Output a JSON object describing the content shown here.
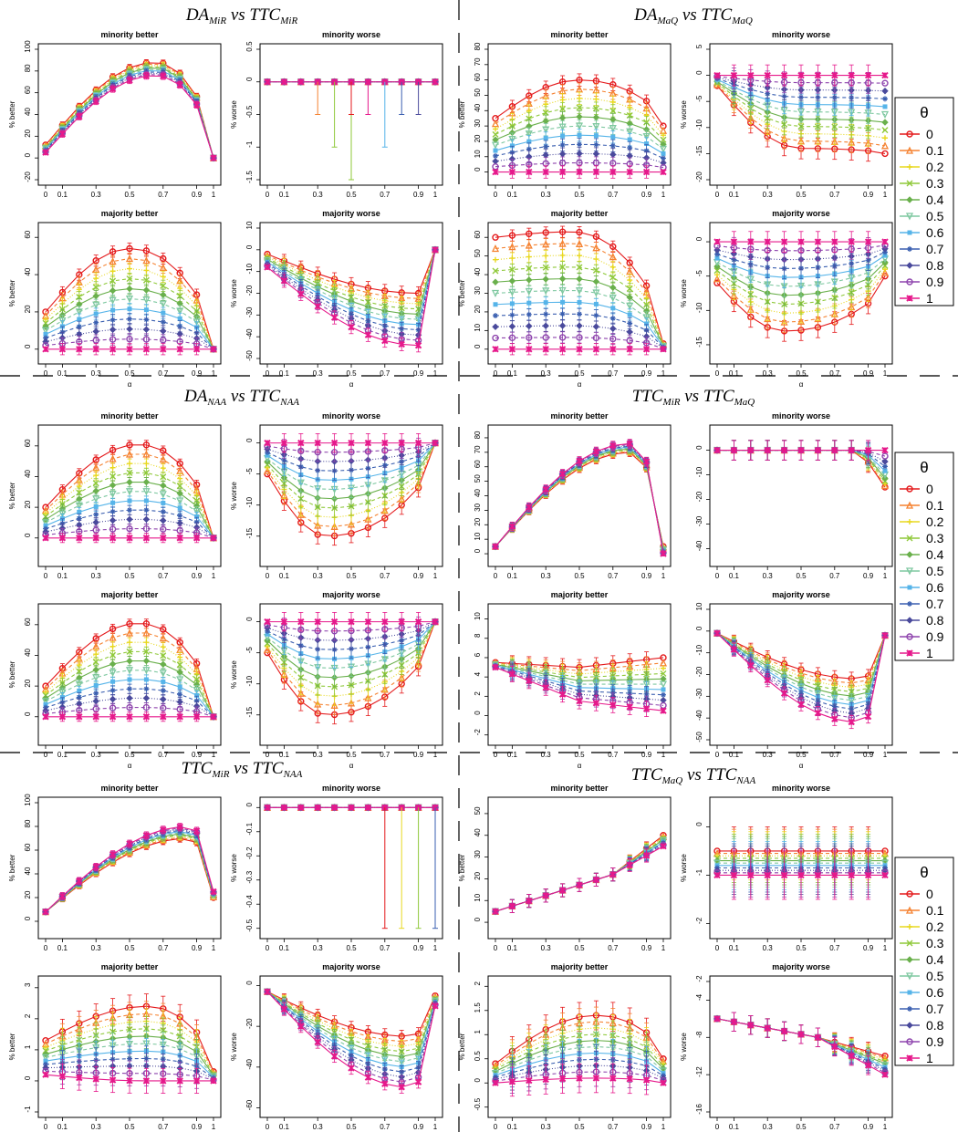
{
  "figure": {
    "alpha": [
      0,
      0.1,
      0.2,
      0.3,
      0.4,
      0.5,
      0.6,
      0.7,
      0.8,
      0.9,
      1
    ],
    "alpha_tick_labels": [
      "0",
      "0.1",
      "0.3",
      "0.5",
      "0.7",
      "0.9",
      "1"
    ],
    "alpha_tick_values": [
      0,
      0.1,
      0.3,
      0.5,
      0.7,
      0.9,
      1
    ],
    "legend": {
      "title": "θ",
      "entries": [
        "0",
        "0.1",
        "0.2",
        "0.3",
        "0.4",
        "0.5",
        "0.6",
        "0.7",
        "0.8",
        "0.9",
        "1"
      ],
      "colors": [
        "#e41a1c",
        "#f58231",
        "#e8d81e",
        "#8fc93a",
        "#6ab04c",
        "#7ec8a0",
        "#56b4e9",
        "#3a5fb0",
        "#4a4a9c",
        "#8e44ad",
        "#e6198b"
      ],
      "markers": [
        "circle",
        "triangle",
        "plus",
        "cross",
        "diamond",
        "triangle-down",
        "square",
        "asterisk",
        "diamond",
        "circle",
        "star"
      ]
    }
  },
  "chart_data": [
    {
      "group": {
        "name": "DA",
        "sub": "MiR",
        "vs": "vs",
        "name2": "TTC",
        "sub2": "MiR"
      },
      "panels": [
        {
          "type": "line",
          "title": "minority better",
          "ylabel": "% better",
          "xlabel": "",
          "ylim": [
            -20,
            100
          ],
          "yticks": [
            -20,
            0,
            20,
            40,
            60,
            80,
            100
          ],
          "shape": "hump",
          "start": [
            12,
            5
          ],
          "peak": [
            88,
            76
          ],
          "peak_alpha": 0.65,
          "end": [
            0,
            0
          ],
          "err": 3
        },
        {
          "type": "line",
          "title": "minority worse",
          "ylabel": "% worse",
          "xlabel": "",
          "ylim": [
            -1.5,
            0.5
          ],
          "yticks": [
            -1.5,
            -1.0,
            -0.5,
            0.0,
            0.5
          ],
          "shape": "flat",
          "start": [
            0,
            0
          ],
          "peak": [
            0,
            0
          ],
          "end": [
            0,
            0
          ],
          "err": 0,
          "spikes": true
        },
        {
          "type": "line",
          "title": "majority better",
          "ylabel": "% better",
          "xlabel": "α",
          "ylim": [
            -5,
            65
          ],
          "yticks": [
            0,
            20,
            40,
            60
          ],
          "shape": "hump",
          "start": [
            20,
            0
          ],
          "peak": [
            54,
            0
          ],
          "peak_alpha": 0.5,
          "end": [
            0,
            0
          ],
          "err": 3
        },
        {
          "type": "line",
          "title": "majority worse",
          "ylabel": "% worse",
          "xlabel": "α",
          "ylim": [
            -50,
            10
          ],
          "yticks": [
            -50,
            -40,
            -30,
            -20,
            -10,
            0,
            10
          ],
          "shape": "dip",
          "start": [
            -2,
            -8
          ],
          "peak": [
            -20,
            -44
          ],
          "peak_alpha": 0.9,
          "end": [
            0,
            0
          ],
          "err": 3
        }
      ]
    },
    {
      "group": {
        "name": "DA",
        "sub": "MaQ",
        "vs": "vs",
        "name2": "TTC",
        "sub2": "MaQ"
      },
      "panels": [
        {
          "type": "line",
          "title": "minority better",
          "ylabel": "% better",
          "xlabel": "",
          "ylim": [
            -5,
            80
          ],
          "yticks": [
            0,
            10,
            20,
            30,
            40,
            50,
            60,
            70,
            80
          ],
          "shape": "hump",
          "start": [
            35,
            0
          ],
          "peak": [
            60,
            0
          ],
          "peak_alpha": 0.5,
          "end": [
            30,
            0
          ],
          "err": 4
        },
        {
          "type": "line",
          "title": "minority worse",
          "ylabel": "% worse",
          "xlabel": "",
          "ylim": [
            -20,
            5
          ],
          "yticks": [
            -20,
            -15,
            -10,
            -5,
            0,
            5
          ],
          "shape": "dip",
          "start": [
            -2,
            0
          ],
          "peak": [
            -14,
            0
          ],
          "peak_alpha": 0.5,
          "end": [
            -15,
            0
          ],
          "err": 2
        },
        {
          "type": "line",
          "title": "majority better",
          "ylabel": "% better",
          "xlabel": "α",
          "ylim": [
            -5,
            65
          ],
          "yticks": [
            0,
            10,
            20,
            30,
            40,
            50,
            60
          ],
          "shape": "hump",
          "start": [
            60,
            0
          ],
          "peak": [
            63,
            0
          ],
          "peak_alpha": 0.45,
          "end": [
            3,
            0
          ],
          "err": 3
        },
        {
          "type": "line",
          "title": "majority worse",
          "ylabel": "% worse",
          "xlabel": "α",
          "ylim": [
            -17,
            2
          ],
          "yticks": [
            -15,
            -10,
            -5,
            0
          ],
          "shape": "dip",
          "start": [
            -6,
            0
          ],
          "peak": [
            -13,
            0
          ],
          "peak_alpha": 0.4,
          "end": [
            -5,
            0
          ],
          "err": 1.5
        }
      ]
    },
    {
      "group": {
        "name": "DA",
        "sub": "NAA",
        "vs": "vs",
        "name2": "TTC",
        "sub2": "NAA"
      },
      "panels": [
        {
          "type": "line",
          "title": "minority better",
          "ylabel": "% better",
          "xlabel": "",
          "ylim": [
            -15,
            70
          ],
          "yticks": [
            0,
            20,
            40,
            60
          ],
          "shape": "hump",
          "start": [
            20,
            0
          ],
          "peak": [
            61,
            0
          ],
          "peak_alpha": 0.55,
          "end": [
            0,
            0
          ],
          "err": 3
        },
        {
          "type": "line",
          "title": "minority worse",
          "ylabel": "% worse",
          "xlabel": "",
          "ylim": [
            -19,
            2
          ],
          "yticks": [
            -15,
            -10,
            -5,
            0
          ],
          "shape": "dip",
          "start": [
            -5,
            0
          ],
          "peak": [
            -15,
            0
          ],
          "peak_alpha": 0.35,
          "end": [
            0,
            0
          ],
          "err": 1.5
        },
        {
          "type": "line",
          "title": "majority better",
          "ylabel": "% better",
          "xlabel": "α",
          "ylim": [
            -15,
            70
          ],
          "yticks": [
            0,
            20,
            40,
            60
          ],
          "shape": "hump",
          "start": [
            20,
            0
          ],
          "peak": [
            61,
            0
          ],
          "peak_alpha": 0.55,
          "end": [
            0,
            0
          ],
          "err": 3
        },
        {
          "type": "line",
          "title": "majority worse",
          "ylabel": "% worse",
          "xlabel": "α",
          "ylim": [
            -19,
            2
          ],
          "yticks": [
            -15,
            -10,
            -5,
            0
          ],
          "shape": "dip",
          "start": [
            -5,
            0
          ],
          "peak": [
            -15,
            0
          ],
          "peak_alpha": 0.35,
          "end": [
            0,
            0
          ],
          "err": 1.5
        }
      ]
    },
    {
      "group": {
        "name": "TTC",
        "sub": "MiR",
        "vs": "vs",
        "name2": "TTC",
        "sub2": "MaQ"
      },
      "panels": [
        {
          "type": "line",
          "title": "minority better",
          "ylabel": "",
          "xlabel": "",
          "ylim": [
            -5,
            85
          ],
          "yticks": [
            0,
            10,
            20,
            30,
            40,
            50,
            60,
            70,
            80
          ],
          "shape": "hump",
          "start": [
            5,
            5
          ],
          "peak": [
            70,
            76
          ],
          "peak_alpha": 0.8,
          "end": [
            5,
            0
          ],
          "err": 3
        },
        {
          "type": "line",
          "title": "minority worse",
          "ylabel": "",
          "xlabel": "",
          "ylim": [
            -45,
            8
          ],
          "yticks": [
            -40,
            -30,
            -20,
            -10,
            0
          ],
          "shape": "flat-drop",
          "start": [
            0,
            0
          ],
          "peak": [
            0,
            0
          ],
          "end": [
            -25,
            0
          ],
          "err": 4
        },
        {
          "type": "line",
          "title": "majority better",
          "ylabel": "",
          "xlabel": "α",
          "ylim": [
            -2.5,
            11
          ],
          "yticks": [
            -2,
            0,
            2,
            4,
            6,
            8,
            10
          ],
          "shape": "linear",
          "start": [
            5.5,
            5
          ],
          "peak": [
            5,
            1.5
          ],
          "peak_alpha": 0.5,
          "end": [
            6,
            0.5
          ],
          "err": 0.8
        },
        {
          "type": "line",
          "title": "majority worse",
          "ylabel": "",
          "xlabel": "α",
          "ylim": [
            -50,
            10
          ],
          "yticks": [
            -50,
            -40,
            -30,
            -20,
            -10,
            0,
            10
          ],
          "shape": "dip",
          "start": [
            -1,
            -1
          ],
          "peak": [
            -22,
            -42
          ],
          "peak_alpha": 0.85,
          "end": [
            -2,
            -2
          ],
          "err": 3
        }
      ]
    },
    {
      "group": {
        "name": "TTC",
        "sub": "MiR",
        "vs": "vs",
        "name2": "TTC",
        "sub2": "NAA"
      },
      "panels": [
        {
          "type": "line",
          "title": "minority better",
          "ylabel": "% better",
          "xlabel": "",
          "ylim": [
            -10,
            100
          ],
          "yticks": [
            0,
            20,
            40,
            60,
            80,
            100
          ],
          "shape": "hump",
          "start": [
            8,
            8
          ],
          "peak": [
            70,
            80
          ],
          "peak_alpha": 0.85,
          "end": [
            20,
            25
          ],
          "err": 3
        },
        {
          "type": "line",
          "title": "minority worse",
          "ylabel": "% worse",
          "xlabel": "",
          "ylim": [
            -0.52,
            0.02
          ],
          "yticks": [
            -0.5,
            -0.4,
            -0.3,
            -0.2,
            -0.1,
            0.0
          ],
          "shape": "flat",
          "start": [
            0,
            0
          ],
          "peak": [
            0,
            0
          ],
          "end": [
            0,
            0
          ],
          "err": 0,
          "tails": true
        },
        {
          "type": "line",
          "title": "majority better",
          "ylabel": "% better",
          "xlabel": "α",
          "ylim": [
            -1,
            3.2
          ],
          "yticks": [
            -1,
            0,
            1,
            2,
            3
          ],
          "shape": "hump",
          "start": [
            1.3,
            0.2
          ],
          "peak": [
            2.4,
            0.0
          ],
          "peak_alpha": 0.6,
          "end": [
            0.3,
            0.0
          ],
          "err": 0.4
        },
        {
          "type": "line",
          "title": "majority worse",
          "ylabel": "% worse",
          "xlabel": "α",
          "ylim": [
            -62,
            2
          ],
          "yticks": [
            -60,
            -40,
            -20,
            0
          ],
          "shape": "dip",
          "start": [
            -3,
            -3
          ],
          "peak": [
            -25,
            -50
          ],
          "peak_alpha": 0.85,
          "end": [
            -5,
            -10
          ],
          "err": 3
        }
      ]
    },
    {
      "group": {
        "name": "TTC",
        "sub": "MaQ",
        "vs": "vs",
        "name2": "TTC",
        "sub2": "NAA"
      },
      "panels": [
        {
          "type": "line",
          "title": "minority better",
          "ylabel": "% better",
          "xlabel": "",
          "ylim": [
            -5,
            55
          ],
          "yticks": [
            0,
            10,
            20,
            30,
            40,
            50
          ],
          "shape": "linear",
          "start": [
            5,
            5
          ],
          "peak": [
            22,
            22
          ],
          "peak_alpha": 0.7,
          "end": [
            40,
            35
          ],
          "err": 3
        },
        {
          "type": "line",
          "title": "minority worse",
          "ylabel": "% worse",
          "xlabel": "",
          "ylim": [
            -2.2,
            0.5
          ],
          "yticks": [
            -2.0,
            -1.0,
            0.0
          ],
          "shape": "flat",
          "start": [
            -0.5,
            -1
          ],
          "peak": [
            -0.5,
            -1
          ],
          "end": [
            0,
            0
          ],
          "err": 0.5,
          "steps": true
        },
        {
          "type": "line",
          "title": "majority better",
          "ylabel": "% better",
          "xlabel": "α",
          "ylim": [
            -0.6,
            2.1
          ],
          "yticks": [
            -0.5,
            0.0,
            0.5,
            1.0,
            1.5,
            2.0
          ],
          "shape": "hump",
          "start": [
            0.4,
            0.0
          ],
          "peak": [
            1.4,
            0.1
          ],
          "peak_alpha": 0.6,
          "end": [
            0.5,
            0.0
          ],
          "err": 0.3
        },
        {
          "type": "line",
          "title": "majority worse",
          "ylabel": "% worse",
          "xlabel": "α",
          "ylim": [
            -16,
            -2
          ],
          "yticks": [
            -16,
            -12,
            -8,
            -4,
            -2
          ],
          "shape": "linear",
          "start": [
            -6,
            -6
          ],
          "peak": [
            -8,
            -8
          ],
          "peak_alpha": 0.6,
          "end": [
            -10,
            -12
          ],
          "err": 1
        }
      ]
    }
  ]
}
